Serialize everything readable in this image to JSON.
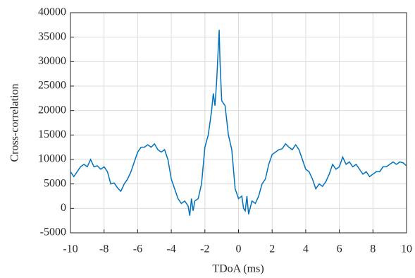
{
  "chart_data": {
    "type": "line",
    "x_label": "TDoA (ms)",
    "y_label": "Cross-correlation",
    "x": [
      -10,
      -9.8,
      -9.6,
      -9.4,
      -9.2,
      -9.0,
      -8.8,
      -8.6,
      -8.4,
      -8.2,
      -8.0,
      -7.8,
      -7.6,
      -7.4,
      -7.2,
      -7.0,
      -6.8,
      -6.6,
      -6.4,
      -6.2,
      -6.0,
      -5.8,
      -5.6,
      -5.4,
      -5.2,
      -5.0,
      -4.8,
      -4.6,
      -4.4,
      -4.2,
      -4.0,
      -3.8,
      -3.6,
      -3.4,
      -3.2,
      -3.0,
      -2.9,
      -2.8,
      -2.7,
      -2.6,
      -2.4,
      -2.2,
      -2.0,
      -1.8,
      -1.6,
      -1.5,
      -1.4,
      -1.3,
      -1.2,
      -1.15,
      -1.1,
      -1.0,
      -0.9,
      -0.8,
      -0.6,
      -0.4,
      -0.2,
      0.0,
      0.2,
      0.3,
      0.4,
      0.5,
      0.6,
      0.8,
      1.0,
      1.2,
      1.4,
      1.6,
      1.8,
      2.0,
      2.2,
      2.4,
      2.6,
      2.8,
      3.0,
      3.2,
      3.4,
      3.6,
      3.8,
      4.0,
      4.2,
      4.4,
      4.6,
      4.8,
      5.0,
      5.2,
      5.4,
      5.6,
      5.8,
      6.0,
      6.2,
      6.4,
      6.6,
      6.8,
      7.0,
      7.2,
      7.4,
      7.6,
      7.8,
      8.0,
      8.2,
      8.4,
      8.6,
      8.8,
      9.0,
      9.2,
      9.4,
      9.6,
      9.8,
      10.0
    ],
    "series": [
      {
        "color": "#0072bd",
        "values": [
          7500,
          6500,
          7500,
          8500,
          9000,
          8500,
          10000,
          8500,
          8700,
          8000,
          8500,
          7500,
          5000,
          5200,
          4200,
          3500,
          5000,
          6000,
          7500,
          9500,
          11500,
          12500,
          12500,
          13000,
          12500,
          13200,
          12000,
          11500,
          12000,
          10000,
          6000,
          4000,
          2000,
          1000,
          1500,
          500,
          -1500,
          2000,
          -500,
          1500,
          2000,
          5000,
          12500,
          15000,
          20000,
          23500,
          21000,
          26000,
          33000,
          36500,
          30000,
          22000,
          21500,
          21000,
          15000,
          12000,
          4000,
          2000,
          2500,
          0,
          -500,
          2500,
          -1200,
          1500,
          1000,
          2500,
          5000,
          6000,
          9000,
          11000,
          11500,
          12000,
          12200,
          13200,
          12500,
          12000,
          13000,
          12000,
          10000,
          8000,
          7500,
          6000,
          4000,
          5000,
          4500,
          5500,
          7000,
          9000,
          8000,
          8500,
          10500,
          9000,
          9500,
          8500,
          9000,
          8000,
          7000,
          7500,
          6500,
          7000,
          7500,
          7500,
          8500,
          8500,
          9000,
          9500,
          9000,
          9500,
          9300,
          8700
        ]
      }
    ],
    "xlim": [
      -10,
      10
    ],
    "xticks": [
      -10,
      -8,
      -6,
      -4,
      -2,
      0,
      2,
      4,
      6,
      8,
      10
    ],
    "ylim": [
      -5000,
      40000
    ],
    "yticks": [
      -5000,
      0,
      5000,
      10000,
      15000,
      20000,
      25000,
      30000,
      35000,
      40000
    ],
    "grid": true
  }
}
